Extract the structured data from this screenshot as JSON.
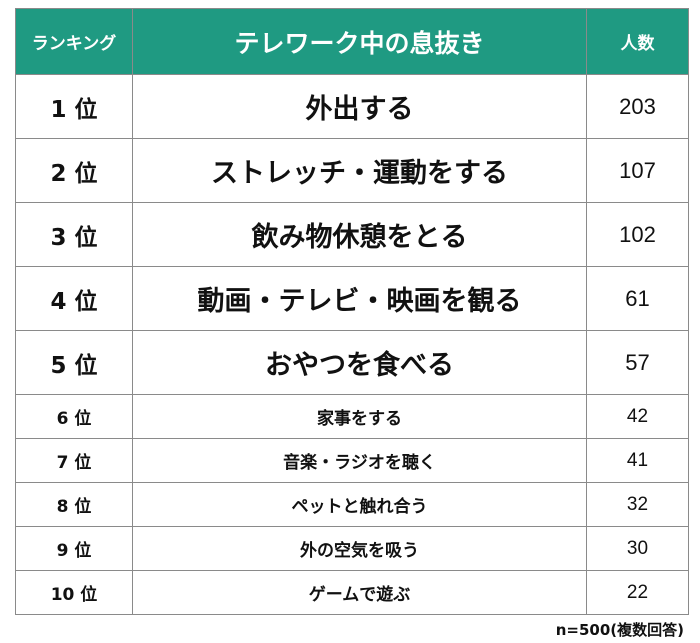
{
  "header": {
    "rank": "ランキング",
    "title": "テレワーク中の息抜き",
    "count": "人数"
  },
  "rows": [
    {
      "rank": "1 位",
      "name": "外出する",
      "count": "203"
    },
    {
      "rank": "2 位",
      "name": "ストレッチ・運動をする",
      "count": "107"
    },
    {
      "rank": "3 位",
      "name": "飲み物休憩をとる",
      "count": "102"
    },
    {
      "rank": "4 位",
      "name": "動画・テレビ・映画を観る",
      "count": "61"
    },
    {
      "rank": "5 位",
      "name": "おやつを食べる",
      "count": "57"
    },
    {
      "rank": "6 位",
      "name": "家事をする",
      "count": "42"
    },
    {
      "rank": "7 位",
      "name": "音楽・ラジオを聴く",
      "count": "41"
    },
    {
      "rank": "8 位",
      "name": "ペットと触れ合う",
      "count": "32"
    },
    {
      "rank": "9 位",
      "name": "外の空気を吸う",
      "count": "30"
    },
    {
      "rank": "10 位",
      "name": "ゲームで遊ぶ",
      "count": "22"
    }
  ],
  "footnote": "n=500(複数回答)",
  "colors": {
    "header_bg": "#1f9a82",
    "header_text": "#ffffff",
    "border": "#8a8a8a"
  }
}
